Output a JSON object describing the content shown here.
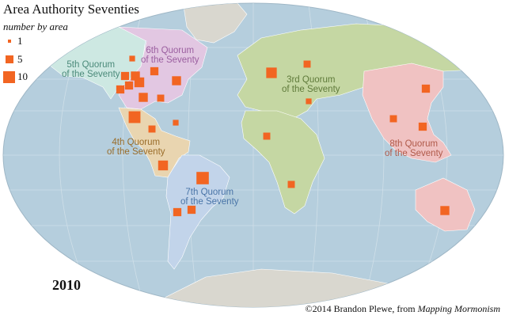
{
  "title": "Area Authority Seventies",
  "legend": {
    "title": "number by area",
    "items": [
      {
        "label": "1",
        "value": 1
      },
      {
        "label": "5",
        "value": 5
      },
      {
        "label": "10",
        "value": 10
      }
    ]
  },
  "year": "2010",
  "credit": {
    "prefix": "©2014 Brandon Plewe, from ",
    "source": "Mapping Mormonism"
  },
  "quorums": [
    {
      "line1": "5th Quorum",
      "line2": "of the Seventy"
    },
    {
      "line1": "6th Quorum",
      "line2": "of the Seventy"
    },
    {
      "line1": "3rd Quorum",
      "line2": "of the Seventy"
    },
    {
      "line1": "4th Quorum",
      "line2": "of the Seventy"
    },
    {
      "line1": "7th Quorum",
      "line2": "of the Seventy"
    },
    {
      "line1": "8th Quorum",
      "line2": "of the Seventy"
    }
  ],
  "colors": {
    "marker": "#f26522",
    "ocean": "#b5cedd",
    "land": "#d9d7cf",
    "q5_region": "#cde8e2",
    "q6_region": "#e2c7e2",
    "q3_region": "#c5d7a3",
    "q4_region": "#e9d5b0",
    "q7_region": "#c2d4ea",
    "q8_region": "#f0c2c2"
  }
}
